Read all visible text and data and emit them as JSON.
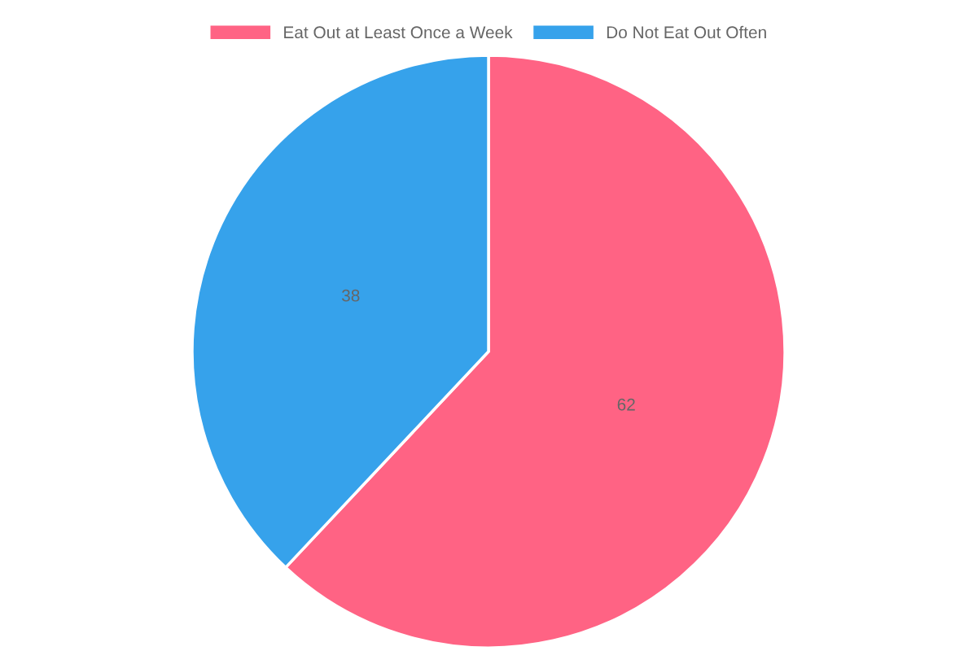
{
  "chart_data": {
    "type": "pie",
    "categories": [
      "Eat Out at Least Once a Week",
      "Do Not Eat Out Often"
    ],
    "values": [
      62,
      38
    ],
    "colors": [
      "#ff6384",
      "#36a2eb"
    ],
    "legend": "top",
    "data_labels": true
  }
}
